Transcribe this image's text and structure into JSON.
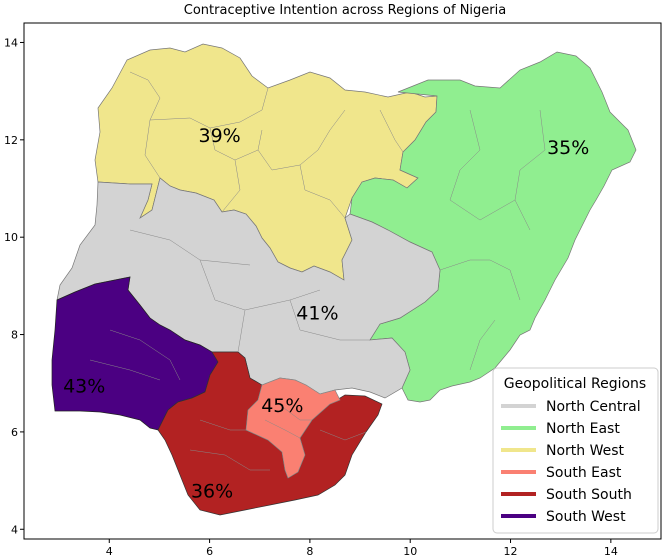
{
  "title": "Contraceptive Intention across Regions of Nigeria",
  "chart_data": {
    "type": "choropleth",
    "title": "Contraceptive Intention across Regions of Nigeria",
    "xlim": [
      2.3,
      15.0
    ],
    "ylim": [
      3.8,
      14.4
    ],
    "xticks": [
      4,
      6,
      8,
      10,
      12,
      14
    ],
    "yticks": [
      4,
      6,
      8,
      10,
      12,
      14
    ],
    "regions": [
      {
        "name": "North Central",
        "value_label": "41%",
        "value": 41,
        "color": "#d3d3d3",
        "label_at": [
          8.15,
          8.45
        ]
      },
      {
        "name": "North East",
        "value_label": "35%",
        "value": 35,
        "color": "#90ee90",
        "label_at": [
          13.15,
          11.85
        ]
      },
      {
        "name": "North West",
        "value_label": "39%",
        "value": 39,
        "color": "#f0e68c",
        "label_at": [
          6.2,
          12.1
        ]
      },
      {
        "name": "South East",
        "value_label": "45%",
        "value": 45,
        "color": "#fa8072",
        "label_at": [
          7.45,
          6.55
        ]
      },
      {
        "name": "South South",
        "value_label": "36%",
        "value": 36,
        "color": "#b22222",
        "label_at": [
          6.05,
          4.8
        ]
      },
      {
        "name": "South West",
        "value_label": "43%",
        "value": 43,
        "color": "#4b0082",
        "label_at": [
          3.5,
          6.95
        ]
      }
    ]
  },
  "legend": {
    "title": "Geopolitical Regions",
    "items": [
      {
        "label": "North Central",
        "color": "#d3d3d3"
      },
      {
        "label": "North East",
        "color": "#90ee90"
      },
      {
        "label": "North West",
        "color": "#f0e68c"
      },
      {
        "label": "South East",
        "color": "#fa8072"
      },
      {
        "label": "South South",
        "color": "#b22222"
      },
      {
        "label": "South West",
        "color": "#4b0082"
      }
    ]
  }
}
